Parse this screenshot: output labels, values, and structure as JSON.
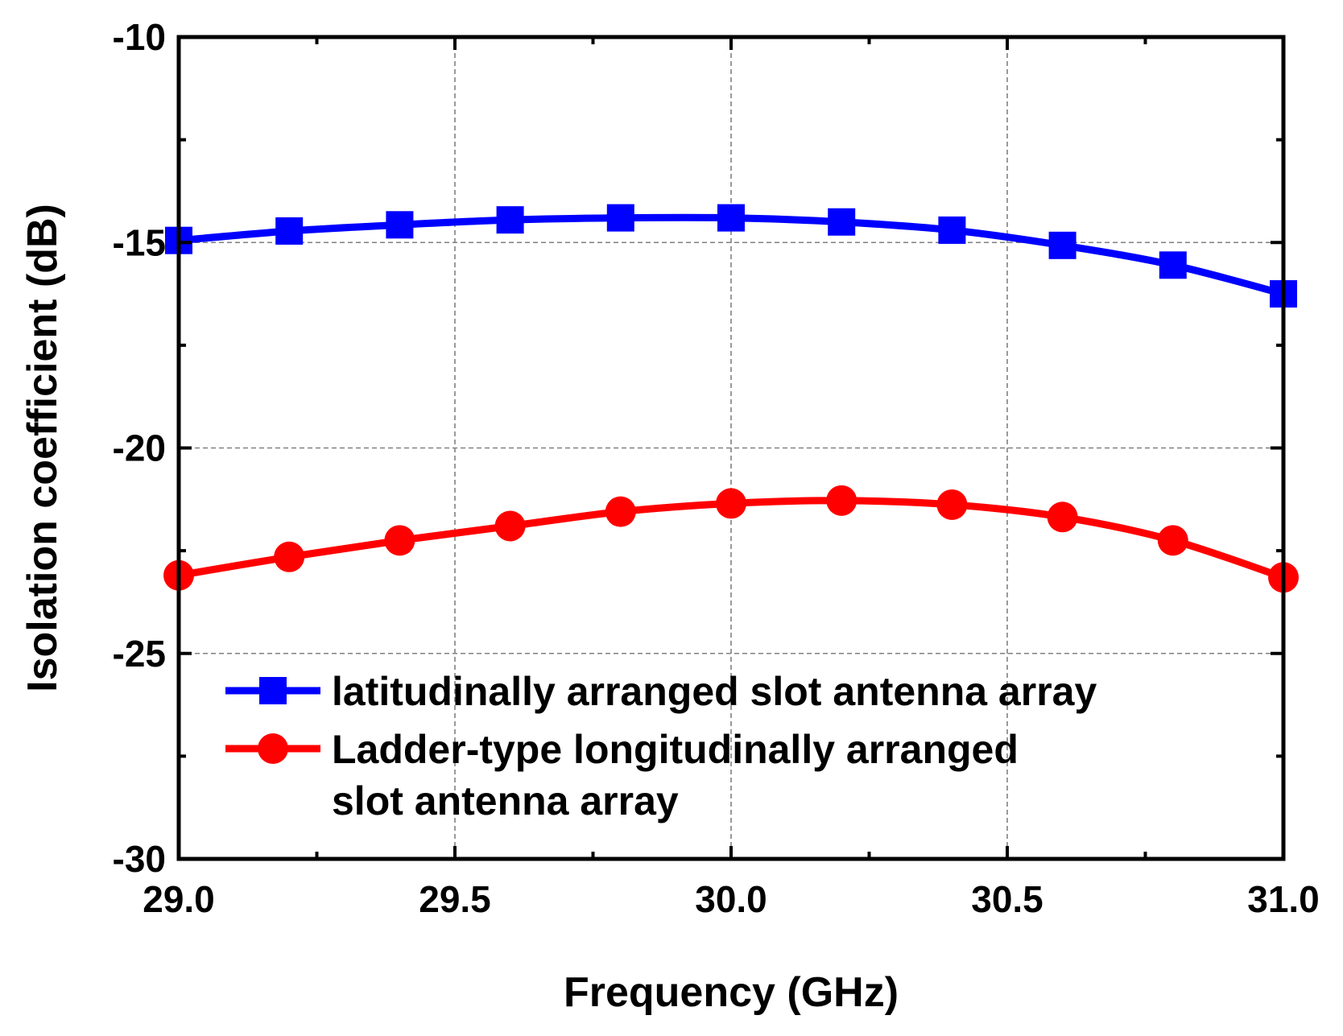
{
  "chart_data": {
    "type": "line",
    "title": "",
    "xlabel": "Frequency (GHz)",
    "ylabel": "Isolation coefficient (dB)",
    "xlim": [
      29.0,
      31.0
    ],
    "ylim": [
      -30,
      -10
    ],
    "xticks": [
      "29.0",
      "29.5",
      "30.0",
      "30.5",
      "31.0"
    ],
    "yticks": [
      "-30",
      "-25",
      "-20",
      "-15",
      "-10"
    ],
    "grid": true,
    "legend_position": "bottom-left",
    "x": [
      29.0,
      29.2,
      29.4,
      29.6,
      29.8,
      30.0,
      30.2,
      30.4,
      30.6,
      30.8,
      31.0
    ],
    "series": [
      {
        "name": "latitudinally arranged slot antenna array",
        "legend_lines": [
          "latitudinally arranged slot antenna array"
        ],
        "color": "#0000ff",
        "marker": "square",
        "values": [
          -14.95,
          -14.72,
          -14.57,
          -14.45,
          -14.4,
          -14.4,
          -14.5,
          -14.7,
          -15.07,
          -15.55,
          -16.25
        ]
      },
      {
        "name": "Ladder-type longitudinally arranged slot antenna array",
        "legend_lines": [
          "Ladder-type longitudinally arranged",
          "slot antenna array"
        ],
        "color": "#ff0000",
        "marker": "circle",
        "values": [
          -23.1,
          -22.65,
          -22.25,
          -21.9,
          -21.55,
          -21.35,
          -21.28,
          -21.38,
          -21.68,
          -22.25,
          -23.15
        ]
      }
    ]
  }
}
